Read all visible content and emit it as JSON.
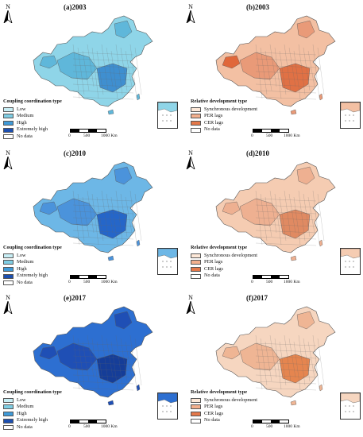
{
  "panels": [
    {
      "id": "a",
      "title": "(a)2003",
      "kind": "cc",
      "fill": "#8fd5e8",
      "mid": "#5fb7da",
      "dark": "#3f8fd0"
    },
    {
      "id": "b",
      "title": "(b)2003",
      "kind": "rd",
      "fill": "#f3c0a3",
      "mid": "#e99a78",
      "dark": "#e07145"
    },
    {
      "id": "c",
      "title": "(c)2010",
      "kind": "cc",
      "fill": "#6db7e6",
      "mid": "#4b93db",
      "dark": "#2566c9"
    },
    {
      "id": "d",
      "title": "(d)2010",
      "kind": "rd",
      "fill": "#f5ccb2",
      "mid": "#eeb091",
      "dark": "#e08a62"
    },
    {
      "id": "e",
      "title": "(e)2017",
      "kind": "cc",
      "fill": "#2d6fd1",
      "mid": "#1f4fb5",
      "dark": "#153d98"
    },
    {
      "id": "f",
      "title": "(f)2017",
      "kind": "rd",
      "fill": "#f6d6c0",
      "mid": "#efb594",
      "dark": "#e5854f"
    }
  ],
  "north_label": "N",
  "legend_cc": {
    "title": "Coupling coordination type",
    "items": [
      {
        "label": "Low",
        "color": "#c8eef5"
      },
      {
        "label": "Medium",
        "color": "#7fcde3"
      },
      {
        "label": "High",
        "color": "#3f9ad8"
      },
      {
        "label": "Extremely high",
        "color": "#1c4fb0"
      },
      {
        "label": "No data",
        "color": "#ffffff"
      }
    ]
  },
  "legend_rd": {
    "title": "Relative development type",
    "items": [
      {
        "label": "Synchronous development",
        "color": "#fde8d8"
      },
      {
        "label": "PER lags",
        "color": "#f3b08e"
      },
      {
        "label": "CER lags",
        "color": "#e4784a"
      },
      {
        "label": "No data",
        "color": "#ffffff"
      }
    ]
  },
  "scale": {
    "t0": "0",
    "t1": "500",
    "t2": "1000 Km"
  }
}
